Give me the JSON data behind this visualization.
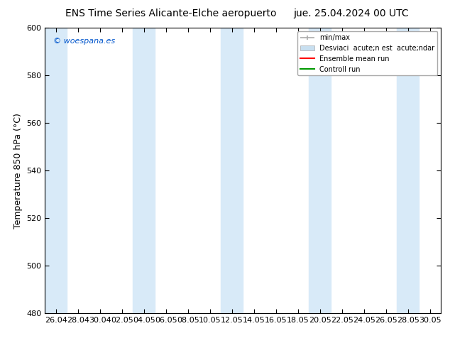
{
  "title_left": "ENS Time Series Alicante-Elche aeropuerto",
  "title_right": "jue. 25.04.2024 00 UTC",
  "ylabel": "Temperature 850 hPa (°C)",
  "watermark": "© woespana.es",
  "ylim": [
    480,
    600
  ],
  "yticks": [
    480,
    500,
    520,
    540,
    560,
    580,
    600
  ],
  "xtick_labels": [
    "26.04",
    "28.04",
    "30.04",
    "02.05",
    "04.05",
    "06.05",
    "08.05",
    "10.05",
    "12.05",
    "14.05",
    "16.05",
    "18.05",
    "20.05",
    "22.05",
    "24.05",
    "26.05",
    "28.05",
    "30.05"
  ],
  "bg_color": "#ffffff",
  "plot_bg_color": "#ffffff",
  "shaded_bands_color": "#d8eaf8",
  "legend_line1": "min/max",
  "legend_line2": "Desviaci  acute;n est  acute;ndar",
  "legend_line3": "Ensemble mean run",
  "legend_line4": "Controll run",
  "legend_color1": "#aaaaaa",
  "legend_color2": "#c8dff0",
  "legend_color3": "#ff0000",
  "legend_color4": "#009900",
  "grid_color": "#cccccc",
  "tick_color": "#000000",
  "font_color": "#000000",
  "watermark_color": "#0055cc",
  "title_fontsize": 10,
  "ylabel_fontsize": 9,
  "tick_fontsize": 8,
  "watermark_fontsize": 8
}
